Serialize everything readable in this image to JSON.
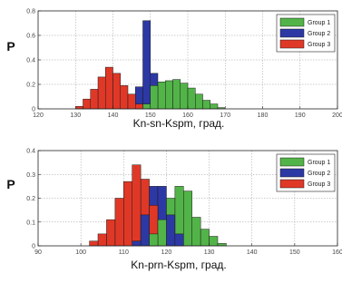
{
  "chart_data": [
    {
      "type": "bar",
      "xlabel": "Kn-sn-Kspm, град.",
      "ylabel": "P",
      "xlim": [
        120,
        200
      ],
      "ylim": [
        0,
        0.8
      ],
      "xticks": [
        "120",
        "130",
        "140",
        "150",
        "160",
        "170",
        "180",
        "190",
        "200"
      ],
      "yticks": [
        "0",
        "0.2",
        "0.4",
        "0.6",
        "0.8"
      ],
      "grid": true,
      "legend_position": "top-right",
      "bin_width": 2,
      "series": [
        {
          "name": "Group 1",
          "color": "#52b448",
          "x": [
            149,
            151,
            153,
            155,
            157,
            159,
            161,
            163,
            165,
            167,
            169
          ],
          "values": [
            0.04,
            0.19,
            0.22,
            0.23,
            0.24,
            0.21,
            0.17,
            0.12,
            0.07,
            0.04,
            0.01
          ]
        },
        {
          "name": "Group 2",
          "color": "#2c38a4",
          "x": [
            147,
            149,
            151
          ],
          "values": [
            0.18,
            0.72,
            0.29
          ]
        },
        {
          "name": "Group 3",
          "color": "#e03827",
          "x": [
            131,
            133,
            135,
            137,
            139,
            141,
            143,
            145,
            147
          ],
          "values": [
            0.02,
            0.08,
            0.16,
            0.26,
            0.34,
            0.29,
            0.19,
            0.12,
            0.04
          ]
        }
      ]
    },
    {
      "type": "bar",
      "xlabel": "Kn-prn-Kspm, град.",
      "ylabel": "P",
      "xlim": [
        90,
        160
      ],
      "ylim": [
        0,
        0.4
      ],
      "xticks": [
        "90",
        "100",
        "110",
        "120",
        "130",
        "140",
        "150",
        "160"
      ],
      "yticks": [
        "0",
        "0.1",
        "0.2",
        "0.3",
        "0.4"
      ],
      "grid": true,
      "legend_position": "top-right",
      "bin_width": 2,
      "series": [
        {
          "name": "Group 1",
          "color": "#52b448",
          "x": [
            117,
            119,
            121,
            123,
            125,
            127,
            129,
            131,
            133
          ],
          "values": [
            0.05,
            0.11,
            0.2,
            0.25,
            0.23,
            0.12,
            0.07,
            0.04,
            0.01
          ]
        },
        {
          "name": "Group 2",
          "color": "#2c38a4",
          "x": [
            113,
            115,
            117,
            119,
            121,
            123
          ],
          "values": [
            0.02,
            0.13,
            0.25,
            0.25,
            0.13,
            0.05
          ]
        },
        {
          "name": "Group 3",
          "color": "#e03827",
          "x": [
            103,
            105,
            107,
            109,
            111,
            113,
            115,
            117
          ],
          "values": [
            0.02,
            0.05,
            0.11,
            0.2,
            0.27,
            0.34,
            0.28,
            0.17
          ]
        }
      ]
    }
  ]
}
